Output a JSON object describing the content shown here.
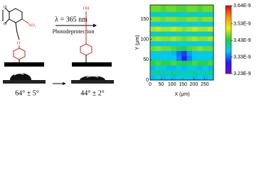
{
  "scheme": {
    "nitro": "NO₂",
    "ether_o": "O",
    "dioxole_o1": "O",
    "dioxole_o2": "O",
    "wavelength": "λ = 365 nm",
    "process": "Photodeprotection",
    "hydroxyl": "OH",
    "angle_before": "64° ± 5°",
    "angle_after": "44° ± 2°"
  },
  "chart_data": {
    "type": "heatmap",
    "xlabel": "X (μm)",
    "ylabel": "Y (μm)",
    "x": [
      12,
      36,
      60,
      84,
      108,
      132,
      156,
      180,
      204,
      228,
      252,
      276
    ],
    "y": [
      6,
      18,
      30,
      42,
      54,
      66,
      78,
      90,
      102,
      114,
      126,
      138,
      150,
      162,
      174
    ],
    "values": [
      [
        3.36e-09,
        3.37e-09,
        3.36e-09,
        3.37e-09,
        3.36e-09,
        3.37e-09,
        3.38e-09,
        3.37e-09,
        3.36e-09,
        3.37e-09,
        3.36e-09,
        3.37e-09
      ],
      [
        3.4e-09,
        3.41e-09,
        3.4e-09,
        3.4e-09,
        3.41e-09,
        3.4e-09,
        3.39e-09,
        3.4e-09,
        3.41e-09,
        3.4e-09,
        3.4e-09,
        3.41e-09
      ],
      [
        3.36e-09,
        3.37e-09,
        3.37e-09,
        3.36e-09,
        3.36e-09,
        3.37e-09,
        3.36e-09,
        3.37e-09,
        3.37e-09,
        3.36e-09,
        3.37e-09,
        3.36e-09
      ],
      [
        3.44e-09,
        3.45e-09,
        3.44e-09,
        3.44e-09,
        3.45e-09,
        3.44e-09,
        3.43e-09,
        3.44e-09,
        3.45e-09,
        3.44e-09,
        3.44e-09,
        3.45e-09
      ],
      [
        3.38e-09,
        3.38e-09,
        3.37e-09,
        3.38e-09,
        3.37e-09,
        3.34e-09,
        3.3e-09,
        3.34e-09,
        3.37e-09,
        3.38e-09,
        3.37e-09,
        3.38e-09
      ],
      [
        3.37e-09,
        3.38e-09,
        3.37e-09,
        3.37e-09,
        3.36e-09,
        3.33e-09,
        3.31e-09,
        3.35e-09,
        3.37e-09,
        3.37e-09,
        3.38e-09,
        3.37e-09
      ],
      [
        3.46e-09,
        3.47e-09,
        3.46e-09,
        3.46e-09,
        3.45e-09,
        3.44e-09,
        3.43e-09,
        3.45e-09,
        3.46e-09,
        3.47e-09,
        3.46e-09,
        3.46e-09
      ],
      [
        3.37e-09,
        3.38e-09,
        3.37e-09,
        3.38e-09,
        3.37e-09,
        3.37e-09,
        3.38e-09,
        3.37e-09,
        3.38e-09,
        3.37e-09,
        3.37e-09,
        3.38e-09
      ],
      [
        3.47e-09,
        3.48e-09,
        3.47e-09,
        3.47e-09,
        3.48e-09,
        3.47e-09,
        3.46e-09,
        3.47e-09,
        3.48e-09,
        3.47e-09,
        3.47e-09,
        3.48e-09
      ],
      [
        3.38e-09,
        3.38e-09,
        3.39e-09,
        3.38e-09,
        3.38e-09,
        3.39e-09,
        3.38e-09,
        3.38e-09,
        3.39e-09,
        3.38e-09,
        3.38e-09,
        3.39e-09
      ],
      [
        3.48e-09,
        3.49e-09,
        3.48e-09,
        3.48e-09,
        3.49e-09,
        3.48e-09,
        3.47e-09,
        3.48e-09,
        3.49e-09,
        3.48e-09,
        3.48e-09,
        3.49e-09
      ],
      [
        3.37e-09,
        3.38e-09,
        3.37e-09,
        3.37e-09,
        3.38e-09,
        3.37e-09,
        3.37e-09,
        3.38e-09,
        3.37e-09,
        3.37e-09,
        3.38e-09,
        3.37e-09
      ],
      [
        3.47e-09,
        3.47e-09,
        3.46e-09,
        3.47e-09,
        3.47e-09,
        3.46e-09,
        3.46e-09,
        3.47e-09,
        3.47e-09,
        3.46e-09,
        3.47e-09,
        3.47e-09
      ],
      [
        3.38e-09,
        3.39e-09,
        3.38e-09,
        3.38e-09,
        3.39e-09,
        3.38e-09,
        3.38e-09,
        3.39e-09,
        3.38e-09,
        3.38e-09,
        3.39e-09,
        3.38e-09
      ],
      [
        3.46e-09,
        3.46e-09,
        3.45e-09,
        3.46e-09,
        3.46e-09,
        3.45e-09,
        3.45e-09,
        3.46e-09,
        3.46e-09,
        3.45e-09,
        3.46e-09,
        3.46e-09
      ]
    ],
    "xlim": [
      0,
      290
    ],
    "ylim": [
      0,
      185
    ],
    "xticks": [
      0,
      50,
      100,
      150,
      200,
      250
    ],
    "yticks": [
      0,
      50,
      100,
      150
    ],
    "clim": [
      3.23e-09,
      3.64e-09
    ],
    "cticks": [
      {
        "value": 3.23e-09,
        "label": "3.23E-9"
      },
      {
        "value": 3.33e-09,
        "label": "3.33E-9"
      },
      {
        "value": 3.43e-09,
        "label": "3.43E-9"
      },
      {
        "value": 3.53e-09,
        "label": "3.53E-9"
      },
      {
        "value": 3.64e-09,
        "label": "3.64E-9"
      }
    ],
    "colorscale": [
      "#7a00c8",
      "#2020ff",
      "#00c8ff",
      "#20d040",
      "#f0f000",
      "#ff9000",
      "#e00020"
    ]
  }
}
